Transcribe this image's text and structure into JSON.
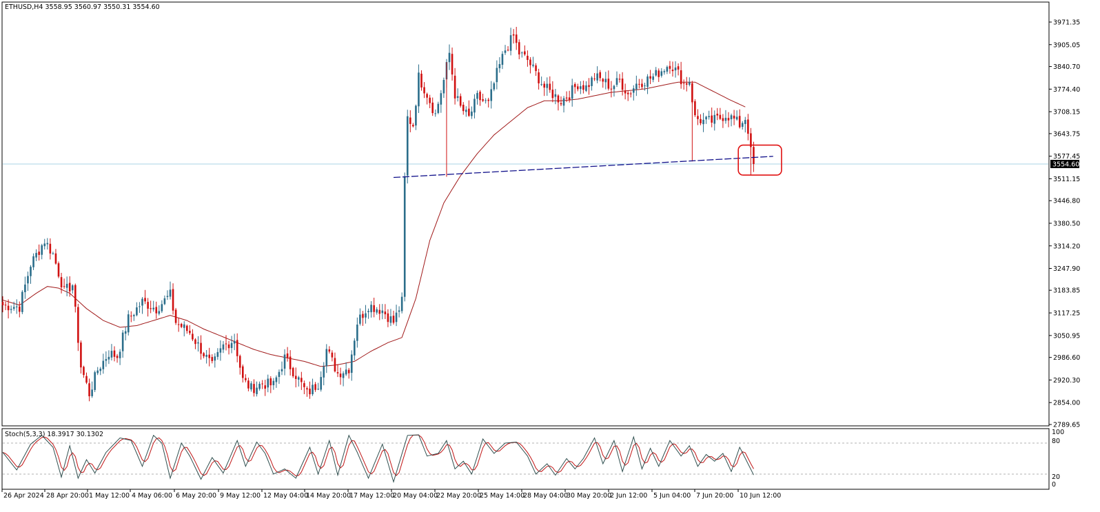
{
  "header": {
    "title_line": "ETHUSD,H4  3558.95 3560.97 3550.31 3554.60"
  },
  "stoch_panel": {
    "title_line": "Stoch(5,3,3) 18.3917 30.1302",
    "levels": [
      "100",
      "80",
      "20",
      "0"
    ]
  },
  "colors": {
    "bull_candle": "#2a6d8a",
    "bear_candle": "#d01010",
    "moving_average": "#a01818",
    "trendline": "#10108a",
    "price_line": "#a9d3e6",
    "stoch_main": "#2f4f4f",
    "stoch_signal": "#c01414",
    "highlight_box": "#e01010",
    "price_tag_bg": "#000000"
  },
  "chart_data": {
    "type": "candlestick",
    "symbol": "ETHUSD",
    "timeframe": "H4",
    "last_price": "3554.60",
    "y_ticks": [
      "3971.35",
      "3905.05",
      "3840.70",
      "3774.40",
      "3708.15",
      "3643.75",
      "3577.45",
      "3511.15",
      "3446.80",
      "3380.50",
      "3314.20",
      "3247.90",
      "3183.85",
      "3117.25",
      "3050.95",
      "2986.60",
      "2920.30",
      "2854.00",
      "2789.65"
    ],
    "ylim": [
      2789.65,
      3995
    ],
    "x_ticks": [
      "26 Apr 2024",
      "28 Apr 20:00",
      "1 May 12:00",
      "4 May 06:00",
      "6 May 20:00",
      "9 May 12:00",
      "12 May 04:00",
      "14 May 20:00",
      "17 May 12:00",
      "20 May 04:00",
      "22 May 20:00",
      "25 May 14:00",
      "28 May 04:00",
      "30 May 20:00",
      "2 Jun 12:00",
      "5 Jun 04:00",
      "7 Jun 20:00",
      "10 Jun 12:00"
    ],
    "candle_count": 270,
    "close_anchors": [
      [
        0,
        3140
      ],
      [
        6,
        3135
      ],
      [
        10,
        3260
      ],
      [
        15,
        3330
      ],
      [
        18,
        3290
      ],
      [
        22,
        3180
      ],
      [
        25,
        3200
      ],
      [
        28,
        2960
      ],
      [
        31,
        2880
      ],
      [
        34,
        2950
      ],
      [
        38,
        3000
      ],
      [
        41,
        2990
      ],
      [
        45,
        3100
      ],
      [
        50,
        3150
      ],
      [
        55,
        3130
      ],
      [
        60,
        3170
      ],
      [
        62,
        3090
      ],
      [
        67,
        3060
      ],
      [
        71,
        3010
      ],
      [
        75,
        2960
      ],
      [
        79,
        3020
      ],
      [
        83,
        3040
      ],
      [
        86,
        2920
      ],
      [
        89,
        2895
      ],
      [
        93,
        2910
      ],
      [
        97,
        2905
      ],
      [
        101,
        2985
      ],
      [
        105,
        2935
      ],
      [
        109,
        2880
      ],
      [
        113,
        2910
      ],
      [
        116,
        3010
      ],
      [
        120,
        2940
      ],
      [
        124,
        2955
      ],
      [
        127,
        3090
      ],
      [
        131,
        3140
      ],
      [
        136,
        3125
      ],
      [
        140,
        3090
      ],
      [
        143,
        3150
      ],
      [
        144,
        3510
      ],
      [
        145,
        3690
      ],
      [
        147,
        3670
      ],
      [
        149,
        3810
      ],
      [
        152,
        3760
      ],
      [
        155,
        3700
      ],
      [
        158,
        3800
      ],
      [
        160,
        3880
      ],
      [
        162,
        3760
      ],
      [
        164,
        3720
      ],
      [
        167,
        3690
      ],
      [
        170,
        3750
      ],
      [
        174,
        3730
      ],
      [
        177,
        3820
      ],
      [
        180,
        3890
      ],
      [
        183,
        3930
      ],
      [
        185,
        3880
      ],
      [
        188,
        3860
      ],
      [
        191,
        3820
      ],
      [
        194,
        3780
      ],
      [
        197,
        3760
      ],
      [
        200,
        3740
      ],
      [
        203,
        3760
      ],
      [
        206,
        3790
      ],
      [
        209,
        3780
      ],
      [
        212,
        3810
      ],
      [
        215,
        3800
      ],
      [
        218,
        3780
      ],
      [
        221,
        3800
      ],
      [
        224,
        3760
      ],
      [
        227,
        3790
      ],
      [
        230,
        3800
      ],
      [
        233,
        3810
      ],
      [
        236,
        3830
      ],
      [
        239,
        3850
      ],
      [
        242,
        3820
      ],
      [
        244,
        3790
      ],
      [
        246,
        3800
      ],
      [
        248,
        3690
      ],
      [
        251,
        3680
      ],
      [
        254,
        3680
      ],
      [
        257,
        3690
      ],
      [
        259,
        3700
      ],
      [
        262,
        3685
      ],
      [
        264,
        3670
      ],
      [
        266,
        3690
      ],
      [
        267,
        3655
      ],
      [
        268,
        3590
      ],
      [
        269,
        3554.6
      ]
    ],
    "moving_average_anchors": [
      [
        0,
        3155
      ],
      [
        6,
        3140
      ],
      [
        12,
        3175
      ],
      [
        16,
        3195
      ],
      [
        20,
        3190
      ],
      [
        24,
        3175
      ],
      [
        30,
        3130
      ],
      [
        36,
        3095
      ],
      [
        42,
        3075
      ],
      [
        48,
        3080
      ],
      [
        54,
        3095
      ],
      [
        60,
        3110
      ],
      [
        66,
        3095
      ],
      [
        72,
        3070
      ],
      [
        78,
        3050
      ],
      [
        84,
        3030
      ],
      [
        90,
        3010
      ],
      [
        96,
        2995
      ],
      [
        102,
        2985
      ],
      [
        108,
        2975
      ],
      [
        114,
        2960
      ],
      [
        120,
        2965
      ],
      [
        126,
        2975
      ],
      [
        132,
        3005
      ],
      [
        138,
        3030
      ],
      [
        143,
        3045
      ],
      [
        148,
        3160
      ],
      [
        153,
        3330
      ],
      [
        158,
        3440
      ],
      [
        164,
        3520
      ],
      [
        170,
        3585
      ],
      [
        176,
        3640
      ],
      [
        182,
        3680
      ],
      [
        188,
        3720
      ],
      [
        194,
        3740
      ],
      [
        200,
        3740
      ],
      [
        206,
        3745
      ],
      [
        212,
        3755
      ],
      [
        218,
        3765
      ],
      [
        224,
        3770
      ],
      [
        230,
        3775
      ],
      [
        236,
        3785
      ],
      [
        242,
        3795
      ],
      [
        248,
        3795
      ],
      [
        254,
        3770
      ],
      [
        260,
        3745
      ],
      [
        266,
        3722
      ]
    ],
    "trendline": {
      "start": {
        "index": 140,
        "price": 3515
      },
      "end": {
        "index": 276,
        "price": 3577
      }
    },
    "highlight_region": {
      "index_from": 264,
      "index_to": 279,
      "price_from": 3522,
      "price_to": 3610
    },
    "stochastic": {
      "title": "Stoch(5,3,3)",
      "main_last": 18.3917,
      "signal_last": 30.1302,
      "levels": [
        80,
        20
      ],
      "main_anchors": [
        [
          0,
          62
        ],
        [
          5,
          28
        ],
        [
          10,
          78
        ],
        [
          14,
          95
        ],
        [
          18,
          72
        ],
        [
          21,
          14
        ],
        [
          24,
          75
        ],
        [
          27,
          12
        ],
        [
          30,
          48
        ],
        [
          33,
          22
        ],
        [
          37,
          62
        ],
        [
          42,
          90
        ],
        [
          46,
          85
        ],
        [
          50,
          35
        ],
        [
          54,
          95
        ],
        [
          57,
          80
        ],
        [
          60,
          12
        ],
        [
          64,
          80
        ],
        [
          67,
          55
        ],
        [
          71,
          10
        ],
        [
          75,
          52
        ],
        [
          79,
          22
        ],
        [
          84,
          85
        ],
        [
          87,
          35
        ],
        [
          91,
          82
        ],
        [
          94,
          60
        ],
        [
          97,
          20
        ],
        [
          101,
          30
        ],
        [
          105,
          12
        ],
        [
          110,
          72
        ],
        [
          113,
          20
        ],
        [
          117,
          85
        ],
        [
          120,
          18
        ],
        [
          124,
          95
        ],
        [
          127,
          62
        ],
        [
          131,
          12
        ],
        [
          136,
          78
        ],
        [
          140,
          5
        ],
        [
          145,
          95
        ],
        [
          149,
          96
        ],
        [
          152,
          55
        ],
        [
          156,
          60
        ],
        [
          159,
          85
        ],
        [
          162,
          30
        ],
        [
          165,
          45
        ],
        [
          168,
          20
        ],
        [
          172,
          88
        ],
        [
          176,
          60
        ],
        [
          180,
          80
        ],
        [
          184,
          82
        ],
        [
          188,
          55
        ],
        [
          191,
          20
        ],
        [
          195,
          40
        ],
        [
          198,
          18
        ],
        [
          202,
          50
        ],
        [
          205,
          30
        ],
        [
          208,
          50
        ],
        [
          212,
          90
        ],
        [
          215,
          40
        ],
        [
          219,
          85
        ],
        [
          222,
          25
        ],
        [
          226,
          92
        ],
        [
          229,
          30
        ],
        [
          232,
          70
        ],
        [
          235,
          35
        ],
        [
          239,
          85
        ],
        [
          243,
          55
        ],
        [
          246,
          75
        ],
        [
          249,
          35
        ],
        [
          252,
          58
        ],
        [
          255,
          45
        ],
        [
          258,
          60
        ],
        [
          261,
          25
        ],
        [
          264,
          72
        ],
        [
          267,
          40
        ],
        [
          269,
          18.3917
        ]
      ]
    }
  }
}
